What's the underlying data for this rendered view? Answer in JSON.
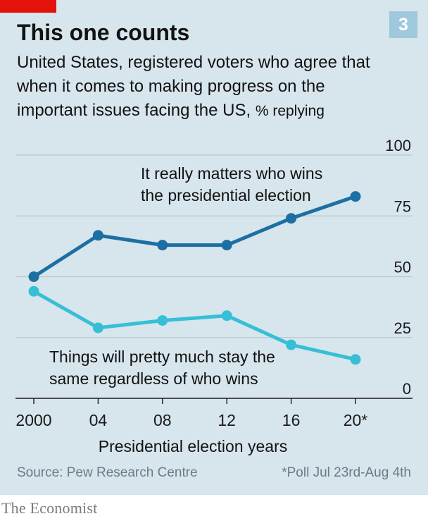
{
  "header": {
    "chart_number": "3",
    "title": "This one counts",
    "subtitle": "United States, registered voters who agree that when it comes to making progress on the important issues facing the US,",
    "unit": "% replying"
  },
  "footer": {
    "source": "Source: Pew Research Centre",
    "footnote": "*Poll Jul 23rd-Aug 4th",
    "brand": "The Economist"
  },
  "colors": {
    "panel_bg": "#d7e5ec",
    "series_dark": "#1c6fa3",
    "series_light": "#36bfd6",
    "grid": "#b9c8d0",
    "accent_red": "#e3120b"
  },
  "chart_data": {
    "type": "line",
    "x": [
      "2000",
      "04",
      "08",
      "12",
      "16",
      "20*"
    ],
    "xlabel": "Presidential election years",
    "ylabel": "",
    "ylim": [
      0,
      100
    ],
    "yticks": [
      0,
      25,
      50,
      75,
      100
    ],
    "grid": true,
    "series": [
      {
        "name": "It really matters who wins the presidential election",
        "label_lines": [
          "It really matters who wins",
          "the presidential election"
        ],
        "values": [
          50,
          67,
          63,
          63,
          74,
          83
        ]
      },
      {
        "name": "Things will pretty much stay the same regardless of who wins",
        "label_lines": [
          "Things will pretty much stay the",
          "same regardless of who wins"
        ],
        "values": [
          44,
          29,
          32,
          34,
          22,
          16
        ]
      }
    ]
  }
}
